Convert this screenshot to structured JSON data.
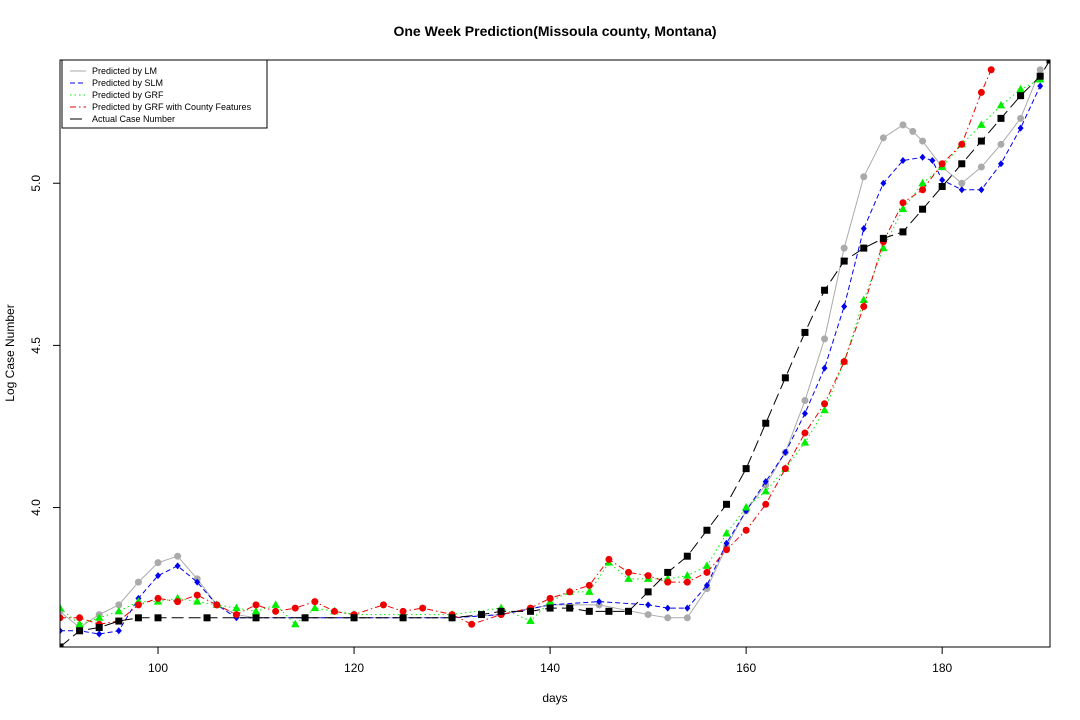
{
  "chart_data": {
    "type": "line",
    "title": "One Week Prediction(Missoula county, Montana)",
    "xlabel": "days",
    "ylabel": "Log Case Number",
    "xlim": [
      90,
      191
    ],
    "ylim": [
      3.57,
      5.38
    ],
    "xticks": [
      100,
      120,
      140,
      160,
      180
    ],
    "yticks": [
      4.0,
      4.5,
      5.0
    ],
    "xtick_labels": [
      "100",
      "120",
      "140",
      "160",
      "180"
    ],
    "ytick_labels": [
      "4.0",
      "4.5",
      "5.0"
    ],
    "grid": false,
    "legend": {
      "position": "top-left"
    },
    "series": [
      {
        "name": "Predicted by LM",
        "color": "#aaaaaa",
        "line": "solid",
        "marker": "circle",
        "x": [
          90,
          92,
          94,
          96,
          98,
          100,
          102,
          104,
          106,
          108,
          110,
          115,
          120,
          125,
          130,
          135,
          140,
          145,
          150,
          152,
          154,
          156,
          158,
          160,
          162,
          164,
          166,
          168,
          170,
          172,
          174,
          176,
          177,
          178,
          180,
          182,
          184,
          186,
          188,
          190
        ],
        "y": [
          3.68,
          3.63,
          3.67,
          3.7,
          3.77,
          3.83,
          3.85,
          3.78,
          3.7,
          3.67,
          3.66,
          3.66,
          3.66,
          3.66,
          3.66,
          3.67,
          3.7,
          3.7,
          3.67,
          3.66,
          3.66,
          3.75,
          3.88,
          3.99,
          4.07,
          4.17,
          4.33,
          4.52,
          4.8,
          5.02,
          5.14,
          5.18,
          5.16,
          5.13,
          5.05,
          5.0,
          5.05,
          5.12,
          5.2,
          5.35
        ]
      },
      {
        "name": "Predicted by SLM",
        "color": "#0000ee",
        "line": "dashed",
        "marker": "diamond",
        "x": [
          90,
          92,
          94,
          96,
          98,
          100,
          102,
          104,
          106,
          108,
          110,
          115,
          120,
          125,
          130,
          135,
          140,
          145,
          150,
          152,
          154,
          156,
          158,
          160,
          162,
          164,
          166,
          168,
          170,
          172,
          174,
          176,
          178,
          179,
          180,
          182,
          184,
          186,
          188,
          190
        ],
        "y": [
          3.62,
          3.62,
          3.61,
          3.62,
          3.72,
          3.79,
          3.82,
          3.77,
          3.7,
          3.66,
          3.66,
          3.66,
          3.66,
          3.66,
          3.66,
          3.67,
          3.7,
          3.71,
          3.7,
          3.69,
          3.69,
          3.76,
          3.89,
          3.99,
          4.08,
          4.17,
          4.29,
          4.43,
          4.62,
          4.86,
          5.0,
          5.07,
          5.08,
          5.07,
          5.01,
          4.98,
          4.98,
          5.06,
          5.17,
          5.3
        ]
      },
      {
        "name": "Predicted by GRF",
        "color": "#00ee00",
        "line": "dotted",
        "marker": "triangle",
        "x": [
          90,
          92,
          94,
          96,
          98,
          100,
          102,
          104,
          106,
          108,
          110,
          112,
          114,
          116,
          118,
          120,
          125,
          130,
          135,
          138,
          140,
          142,
          144,
          146,
          148,
          150,
          152,
          154,
          156,
          158,
          160,
          162,
          164,
          166,
          168,
          170,
          172,
          174,
          176,
          178,
          180,
          182,
          184,
          186,
          188,
          190
        ],
        "y": [
          3.69,
          3.64,
          3.66,
          3.68,
          3.71,
          3.71,
          3.72,
          3.71,
          3.7,
          3.69,
          3.68,
          3.7,
          3.64,
          3.69,
          3.68,
          3.67,
          3.67,
          3.67,
          3.69,
          3.65,
          3.71,
          3.74,
          3.74,
          3.83,
          3.78,
          3.78,
          3.78,
          3.79,
          3.82,
          3.92,
          4.0,
          4.05,
          4.12,
          4.2,
          4.3,
          4.45,
          4.64,
          4.8,
          4.92,
          5.0,
          5.05,
          5.12,
          5.18,
          5.24,
          5.29,
          5.32
        ]
      },
      {
        "name": "Predicted by GRF with County Features",
        "color": "#ee0000",
        "line": "dashdot",
        "marker": "circle",
        "x": [
          90,
          92,
          94,
          96,
          98,
          100,
          102,
          104,
          106,
          108,
          110,
          112,
          114,
          116,
          118,
          120,
          123,
          125,
          127,
          130,
          132,
          135,
          138,
          140,
          142,
          144,
          146,
          148,
          150,
          152,
          154,
          156,
          158,
          160,
          162,
          164,
          166,
          168,
          170,
          172,
          174,
          176,
          178,
          180,
          182,
          184,
          185
        ],
        "y": [
          3.66,
          3.66,
          3.64,
          3.65,
          3.7,
          3.72,
          3.71,
          3.73,
          3.7,
          3.67,
          3.7,
          3.68,
          3.69,
          3.71,
          3.68,
          3.67,
          3.7,
          3.68,
          3.69,
          3.67,
          3.64,
          3.67,
          3.69,
          3.72,
          3.74,
          3.76,
          3.84,
          3.8,
          3.79,
          3.77,
          3.77,
          3.8,
          3.87,
          3.93,
          4.01,
          4.12,
          4.23,
          4.32,
          4.45,
          4.62,
          4.82,
          4.94,
          4.98,
          5.06,
          5.12,
          5.28,
          5.35
        ]
      },
      {
        "name": "Actual Case Number",
        "color": "#000000",
        "line": "longdash",
        "marker": "square",
        "x": [
          90,
          92,
          94,
          96,
          98,
          100,
          105,
          110,
          115,
          120,
          125,
          130,
          133,
          135,
          138,
          140,
          142,
          144,
          146,
          148,
          150,
          152,
          154,
          156,
          158,
          160,
          162,
          164,
          166,
          168,
          170,
          172,
          174,
          176,
          178,
          180,
          182,
          184,
          186,
          188,
          190,
          191
        ],
        "y": [
          3.57,
          3.62,
          3.63,
          3.65,
          3.66,
          3.66,
          3.66,
          3.66,
          3.66,
          3.66,
          3.66,
          3.66,
          3.67,
          3.68,
          3.68,
          3.69,
          3.69,
          3.68,
          3.68,
          3.68,
          3.74,
          3.8,
          3.85,
          3.93,
          4.01,
          4.12,
          4.26,
          4.4,
          4.54,
          4.67,
          4.76,
          4.8,
          4.83,
          4.85,
          4.92,
          4.99,
          5.06,
          5.13,
          5.2,
          5.27,
          5.33,
          5.38
        ]
      }
    ]
  }
}
